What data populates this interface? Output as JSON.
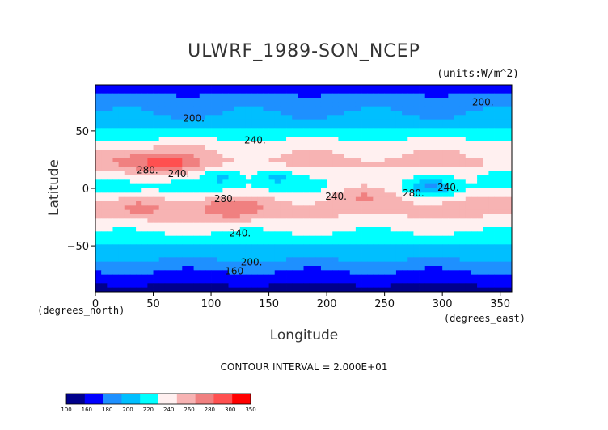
{
  "chart_data": {
    "type": "heatmap",
    "title": "ULWRF_1989-SON_NCEP",
    "units": "(units:W/m^2)",
    "xlabel": "Longitude",
    "ylabel": "Latitude",
    "x_unit_label": "(degrees_east)",
    "y_unit_label": "(degrees_north)",
    "xlim": [
      0,
      360
    ],
    "ylim": [
      -90,
      90
    ],
    "x_ticks": [
      0,
      50,
      100,
      150,
      200,
      250,
      300,
      350
    ],
    "y_ticks": [
      50,
      0,
      -50
    ],
    "x_tick_labels": [
      "0",
      "50",
      "100",
      "150",
      "200",
      "250",
      "300",
      "350"
    ],
    "y_tick_labels": [
      "50",
      "0",
      "−50"
    ],
    "contour_note": "CONTOUR INTERVAL = 2.000E+01",
    "colorbar": {
      "levels": [
        "100",
        "160",
        "180",
        "200",
        "220",
        "240",
        "260",
        "280",
        "300",
        "350"
      ],
      "colors": [
        "#00008b",
        "#0000ff",
        "#1e90ff",
        "#00bfff",
        "#00ffff",
        "#fff0f0",
        "#f7b3b3",
        "#f08080",
        "#ff5050",
        "#ff0000"
      ]
    },
    "contour_labels": [
      {
        "text": "200.",
        "lon": 85,
        "lat": 58
      },
      {
        "text": "200.",
        "lon": 335,
        "lat": 72
      },
      {
        "text": "240.",
        "lon": 138,
        "lat": 39
      },
      {
        "text": "280.",
        "lon": 45,
        "lat": 13
      },
      {
        "text": "240.",
        "lon": 72,
        "lat": 10
      },
      {
        "text": "280.",
        "lon": 112,
        "lat": -12
      },
      {
        "text": "240.",
        "lon": 208,
        "lat": -10
      },
      {
        "text": "280.",
        "lon": 275,
        "lat": -7
      },
      {
        "text": "240.",
        "lon": 305,
        "lat": -2
      },
      {
        "text": "240.",
        "lon": 125,
        "lat": -42
      },
      {
        "text": "200.",
        "lon": 135,
        "lat": -67
      },
      {
        "text": "160",
        "lon": 120,
        "lat": -75
      }
    ],
    "fields": {
      "zonal_mean_lat": [
        90,
        75,
        60,
        48,
        35,
        22,
        10,
        0,
        -12,
        -22,
        -35,
        -48,
        -60,
        -72,
        -90
      ],
      "zonal_mean_value": [
        170,
        190,
        205,
        230,
        255,
        265,
        245,
        235,
        260,
        262,
        245,
        222,
        205,
        180,
        150
      ],
      "hotspots": [
        {
          "lon": 60,
          "lat": 22,
          "value": 310
        },
        {
          "lon": 120,
          "lat": -18,
          "value": 300
        },
        {
          "lon": 20,
          "lat": 25,
          "value": 280
        },
        {
          "lon": 40,
          "lat": -18,
          "value": 285
        },
        {
          "lon": 230,
          "lat": -5,
          "value": 275
        },
        {
          "lon": 330,
          "lat": -15,
          "value": 270
        }
      ],
      "coldspots": [
        {
          "lon": 290,
          "lat": 0,
          "value": 200
        },
        {
          "lon": 20,
          "lat": 0,
          "value": 215
        },
        {
          "lon": 110,
          "lat": 10,
          "value": 215
        },
        {
          "lon": 155,
          "lat": 10,
          "value": 215
        },
        {
          "lon": 350,
          "lat": 10,
          "value": 220
        }
      ]
    }
  }
}
